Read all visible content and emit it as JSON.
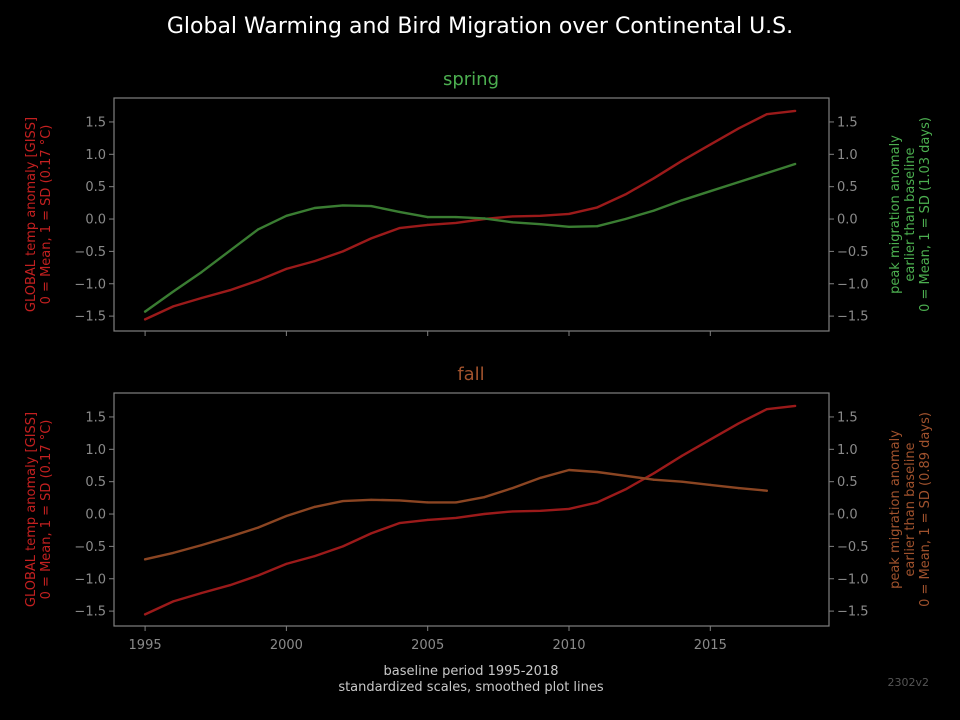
{
  "suptitle": "Global Warming and Bird Migration over Continental U.S.",
  "xlabel_lines": [
    "baseline period 1995-2018",
    "standardized scales, smoothed plot lines"
  ],
  "version": "2302v2",
  "colors": {
    "background": "#000000",
    "axes": "#808080",
    "tick_text": "#8a8a8a",
    "temp": "#9b1a1a",
    "temp_label": "#c42020",
    "spring": "#3a7d32",
    "spring_label": "#4caf50",
    "fall": "#8b4522",
    "fall_label": "#a0522d",
    "xlabel": "#c8c8c8",
    "version": "#555555",
    "title": "#ffffff"
  },
  "chart_data": [
    {
      "type": "line",
      "title": "spring",
      "title_color": "#4caf50",
      "xlim": [
        1993.9,
        2019.2
      ],
      "xticks": [
        1995,
        2000,
        2005,
        2010,
        2015
      ],
      "show_xtick_labels": false,
      "ylim": [
        -1.73,
        1.87
      ],
      "yticks": [
        -1.5,
        -1.0,
        -0.5,
        0.0,
        0.5,
        1.0,
        1.5
      ],
      "ytick_labels": [
        "−1.5",
        "−1.0",
        "−0.5",
        "0.0",
        "0.5",
        "1.0",
        "1.5"
      ],
      "left_ylabel_lines": [
        "GLOBAL temp anomaly [GISS]",
        "0 = Mean, 1 = SD (0.17 °C)"
      ],
      "right_ylabel_lines": [
        "peak migration anomaly",
        "earlier than baseline",
        "0 = Mean, 1 = SD (1.03 days)"
      ],
      "right_label_color": "#4caf50",
      "series": [
        {
          "axis": "left",
          "color": "#9b1a1a",
          "x": [
            1995,
            1996,
            1997,
            1998,
            1999,
            2000,
            2001,
            2002,
            2003,
            2004,
            2005,
            2006,
            2007,
            2008,
            2009,
            2010,
            2011,
            2012,
            2013,
            2014,
            2015,
            2016,
            2017,
            2018
          ],
          "values": [
            -1.55,
            -1.35,
            -1.22,
            -1.1,
            -0.95,
            -0.77,
            -0.65,
            -0.5,
            -0.3,
            -0.14,
            -0.09,
            -0.06,
            0.0,
            0.04,
            0.05,
            0.08,
            0.18,
            0.38,
            0.63,
            0.9,
            1.15,
            1.4,
            1.62,
            1.67
          ]
        },
        {
          "axis": "right",
          "color": "#3a7d32",
          "x": [
            1995,
            1996,
            1997,
            1998,
            1999,
            2000,
            2001,
            2002,
            2003,
            2004,
            2005,
            2006,
            2007,
            2008,
            2009,
            2010,
            2011,
            2012,
            2013,
            2014,
            2015,
            2016,
            2017,
            2018
          ],
          "values": [
            -1.43,
            -1.12,
            -0.82,
            -0.49,
            -0.16,
            0.05,
            0.17,
            0.21,
            0.2,
            0.11,
            0.03,
            0.03,
            0.01,
            -0.05,
            -0.08,
            -0.12,
            -0.11,
            0.0,
            0.13,
            0.29,
            0.43,
            0.57,
            0.71,
            0.85
          ]
        }
      ]
    },
    {
      "type": "line",
      "title": "fall",
      "title_color": "#a0522d",
      "xlim": [
        1993.9,
        2019.2
      ],
      "xticks": [
        1995,
        2000,
        2005,
        2010,
        2015
      ],
      "show_xtick_labels": true,
      "xtick_labels": [
        "1995",
        "2000",
        "2005",
        "2010",
        "2015"
      ],
      "ylim": [
        -1.73,
        1.87
      ],
      "yticks": [
        -1.5,
        -1.0,
        -0.5,
        0.0,
        0.5,
        1.0,
        1.5
      ],
      "ytick_labels": [
        "−1.5",
        "−1.0",
        "−0.5",
        "0.0",
        "0.5",
        "1.0",
        "1.5"
      ],
      "left_ylabel_lines": [
        "GLOBAL temp anomaly [GISS]",
        "0 = Mean, 1 = SD (0.17 °C)"
      ],
      "right_ylabel_lines": [
        "peak migration anomaly",
        "earlier than baseline",
        "0 = Mean, 1 = SD (0.89 days)"
      ],
      "right_label_color": "#a0522d",
      "series": [
        {
          "axis": "left",
          "color": "#9b1a1a",
          "x": [
            1995,
            1996,
            1997,
            1998,
            1999,
            2000,
            2001,
            2002,
            2003,
            2004,
            2005,
            2006,
            2007,
            2008,
            2009,
            2010,
            2011,
            2012,
            2013,
            2014,
            2015,
            2016,
            2017,
            2018
          ],
          "values": [
            -1.55,
            -1.35,
            -1.22,
            -1.1,
            -0.95,
            -0.77,
            -0.65,
            -0.5,
            -0.3,
            -0.14,
            -0.09,
            -0.06,
            0.0,
            0.04,
            0.05,
            0.08,
            0.18,
            0.38,
            0.63,
            0.9,
            1.15,
            1.4,
            1.62,
            1.67
          ]
        },
        {
          "axis": "right",
          "color": "#8b4522",
          "x": [
            1995,
            1996,
            1997,
            1998,
            1999,
            2000,
            2001,
            2002,
            2003,
            2004,
            2005,
            2006,
            2007,
            2008,
            2009,
            2010,
            2011,
            2012,
            2013,
            2014,
            2015,
            2016,
            2017
          ],
          "values": [
            -0.7,
            -0.6,
            -0.48,
            -0.35,
            -0.21,
            -0.03,
            0.11,
            0.2,
            0.22,
            0.21,
            0.18,
            0.18,
            0.26,
            0.4,
            0.56,
            0.68,
            0.65,
            0.59,
            0.53,
            0.5,
            0.45,
            0.4,
            0.36
          ]
        }
      ]
    }
  ]
}
